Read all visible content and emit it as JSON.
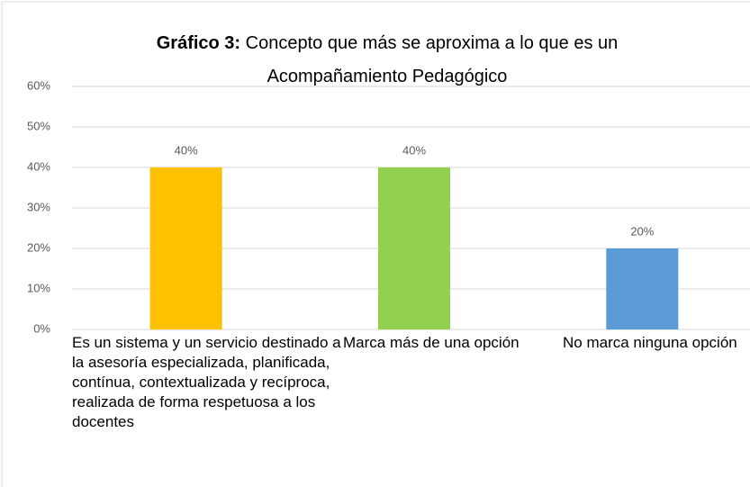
{
  "chart_data": {
    "type": "bar",
    "title": {
      "label": "Gráfico 3:",
      "text": "Concepto que más se aproxima a lo que es un Acompañamiento Pedagógico"
    },
    "categories": [
      "Es un sistema y un servicio destinado a la asesoría especializada, planificada, contínua, contextualizada y recíproca, realizada de forma respetuosa a los docentes",
      "Marca más de una opción",
      "No marca ninguna opción"
    ],
    "values": [
      40,
      40,
      20
    ],
    "value_labels": [
      "40%",
      "40%",
      "20%"
    ],
    "colors": [
      "#ffc000",
      "#92d050",
      "#5b9bd5"
    ],
    "ylim": [
      0,
      60
    ],
    "yticks": [
      {
        "value": 0,
        "label": "0%"
      },
      {
        "value": 10,
        "label": "10%"
      },
      {
        "value": 20,
        "label": "20%"
      },
      {
        "value": 30,
        "label": "30%"
      },
      {
        "value": 40,
        "label": "40%"
      },
      {
        "value": 50,
        "label": "50%"
      },
      {
        "value": 60,
        "label": "60%"
      }
    ],
    "grid": true
  }
}
